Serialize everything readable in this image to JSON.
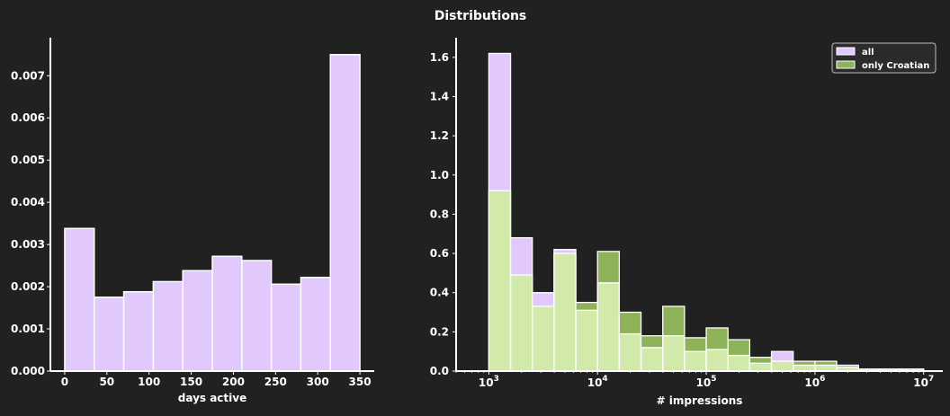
{
  "chart_data": [
    {
      "type": "bar",
      "title": "Distributions",
      "xlabel": "days active",
      "ylabel": "",
      "xlim": [
        -17,
        367
      ],
      "ylim": [
        0,
        0.0079
      ],
      "xticks": [
        "0",
        "50",
        "100",
        "150",
        "200",
        "250",
        "300",
        "350"
      ],
      "yticks": [
        "0.000",
        "0.001",
        "0.002",
        "0.003",
        "0.004",
        "0.005",
        "0.006",
        "0.007"
      ],
      "bin_edges": [
        0,
        35,
        70,
        105,
        140,
        175,
        210,
        245,
        280,
        315,
        350
      ],
      "values": [
        0.00338,
        0.00175,
        0.00188,
        0.00212,
        0.00238,
        0.00272,
        0.00262,
        0.00206,
        0.00222,
        0.0075
      ],
      "colors": {
        "bar_fill": "#e1c9fe",
        "bar_edge": "#ffffff"
      }
    },
    {
      "type": "bar",
      "xlabel": "# impressions",
      "ylabel": "",
      "xscale": "log",
      "xlim": [
        500,
        15000000
      ],
      "ylim": [
        0,
        1.7
      ],
      "xticks": [
        {
          "base": "10",
          "exp": "3"
        },
        {
          "base": "10",
          "exp": "4"
        },
        {
          "base": "10",
          "exp": "5"
        },
        {
          "base": "10",
          "exp": "6"
        },
        {
          "base": "10",
          "exp": "7"
        }
      ],
      "yticks": [
        "0.0",
        "0.2",
        "0.4",
        "0.6",
        "0.8",
        "1.0",
        "1.2",
        "1.4",
        "1.6"
      ],
      "bin_edges": [
        1000,
        1585,
        2512,
        3981,
        6310,
        10000,
        15849,
        25119,
        39811,
        63096,
        100000,
        158489,
        251189,
        398107,
        630957,
        1000000,
        1584893,
        2511886,
        3981072,
        6309573,
        10000000
      ],
      "legend_position": "top-right",
      "series": [
        {
          "name": "all",
          "color": "#e1c9fe",
          "values": [
            1.62,
            0.68,
            0.4,
            0.62,
            0.31,
            0.45,
            0.19,
            0.12,
            0.18,
            0.1,
            0.11,
            0.08,
            0.04,
            0.1,
            0.03,
            0.03,
            0.02,
            0.01,
            0.01,
            0.01
          ]
        },
        {
          "name": "only Croatian",
          "color": "#8db257",
          "values": [
            0.92,
            0.49,
            0.33,
            0.6,
            0.35,
            0.61,
            0.3,
            0.18,
            0.33,
            0.17,
            0.22,
            0.16,
            0.07,
            0.05,
            0.05,
            0.05,
            0.03,
            0.01,
            0.01,
            0.01
          ]
        }
      ],
      "overlap_color": "#d1eaa9"
    }
  ]
}
